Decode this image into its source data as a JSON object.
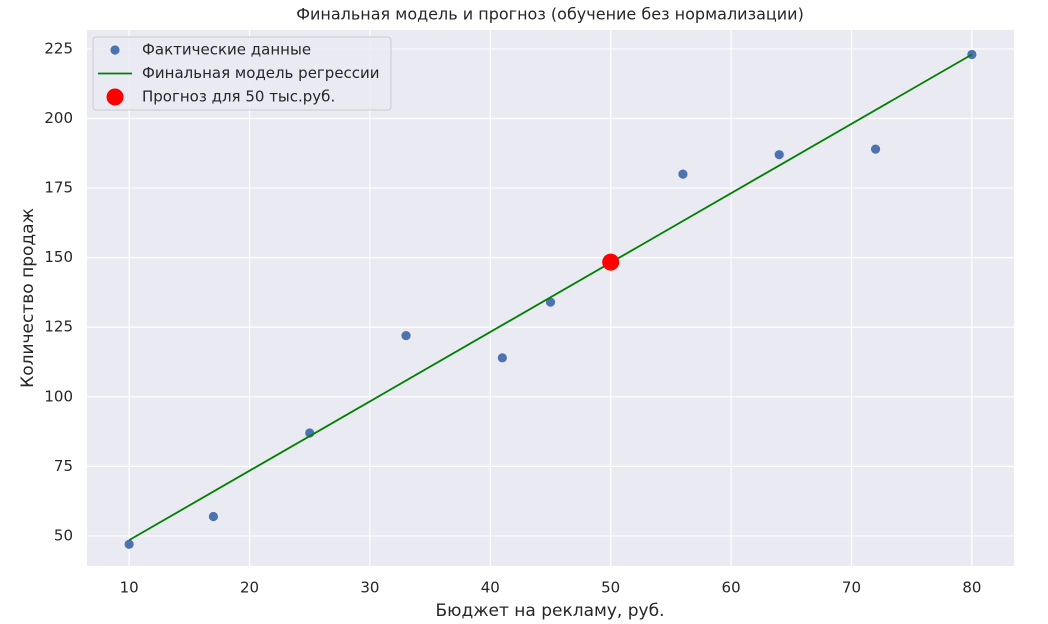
{
  "chart_data": {
    "type": "scatter",
    "title": "Финальная модель и прогноз (обучение без нормализации)",
    "x_label": "Бюджет на рекламу, руб.",
    "y_label": "Количество продаж",
    "xlim": [
      6.5,
      83.5
    ],
    "ylim": [
      39.2,
      231.8
    ],
    "xticks": [
      10,
      20,
      30,
      40,
      50,
      60,
      70,
      80
    ],
    "yticks": [
      50,
      75,
      100,
      125,
      150,
      175,
      200,
      225
    ],
    "grid": true,
    "legend": "upper left",
    "series": [
      {
        "name": "Фактические данные",
        "type": "scatter",
        "color": "#4c72b0",
        "x": [
          10,
          17,
          25,
          33,
          41,
          45,
          56,
          64,
          72,
          80
        ],
        "values": [
          47,
          57,
          87,
          122,
          114,
          134,
          180,
          187,
          189,
          223
        ]
      },
      {
        "name": "Финальная модель регрессии",
        "type": "line",
        "color": "#008000",
        "x": [
          10,
          80
        ],
        "values": [
          48.5,
          223
        ]
      },
      {
        "name": "Прогноз для 50 тыс.руб.",
        "type": "scatter",
        "color": "#ff0000",
        "x": [
          50
        ],
        "values": [
          148.4
        ]
      }
    ]
  }
}
